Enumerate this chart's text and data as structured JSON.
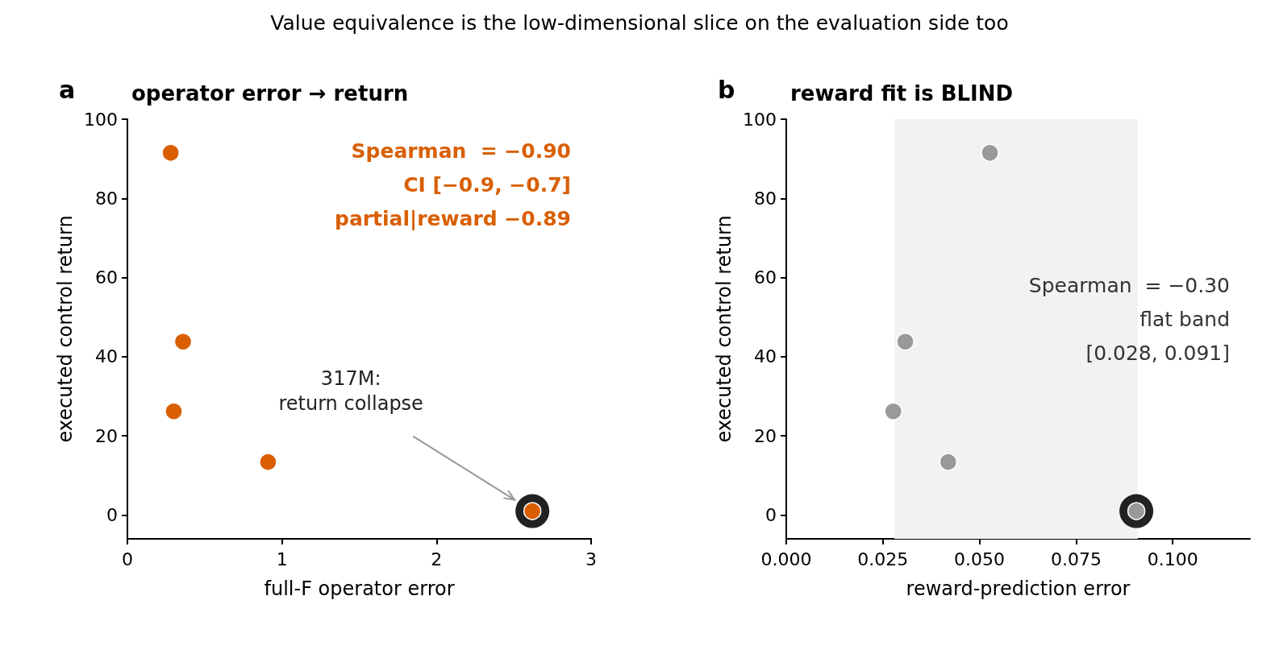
{
  "chart_data": [
    {
      "type": "scatter",
      "subtitle": "Value equivalence is the low-dimensional slice on the evaluation side too",
      "title": "operator error → return",
      "xlabel": "full-F operator error",
      "ylabel": "executed control return",
      "x": [
        0.28,
        0.36,
        0.3,
        0.91,
        2.62
      ],
      "series": [
        {
          "color": "#222222",
          "values": [
            null,
            null,
            null,
            null,
            1.0
          ]
        },
        {
          "color": "#d95f02",
          "values": [
            91.5,
            43.8,
            26.2,
            13.4,
            1.0
          ]
        }
      ],
      "xlim": [
        0,
        3
      ],
      "xticks": [
        0,
        1,
        2,
        3
      ],
      "ylim": [
        -6,
        100
      ],
      "yticks": [
        0,
        20,
        40,
        60,
        80,
        100
      ],
      "grid": false,
      "marker": "circle",
      "annotations": [
        "a",
        "Spearman  = −0.90",
        "CI [−0.9, −0.7]",
        "partial|reward −0.89",
        "317M:\nreturn collapse"
      ]
    },
    {
      "type": "scatter",
      "title": "reward fit is BLIND",
      "xlabel": "reward-prediction error",
      "ylabel": "executed control return",
      "x": [
        0.0527,
        0.0308,
        0.0277,
        0.0419,
        0.0906
      ],
      "series": [
        {
          "color": "#222222",
          "values": [
            null,
            null,
            null,
            null,
            1.0
          ]
        },
        {
          "color": "#999999",
          "values": [
            91.5,
            43.8,
            26.2,
            13.4,
            1.0
          ]
        }
      ],
      "xlim": [
        0,
        0.12
      ],
      "xticks": [
        {
          "value": 0,
          "label": "0.000"
        },
        {
          "value": 0.025,
          "label": "0.025"
        },
        {
          "value": 0.05,
          "label": "0.050"
        },
        {
          "value": 0.075,
          "label": "0.075"
        },
        {
          "value": 0.1,
          "label": "0.100"
        }
      ],
      "ylim": [
        -6,
        100
      ],
      "yticks": [
        0,
        20,
        40,
        60,
        80,
        100
      ],
      "grid": false,
      "marker": "circle",
      "bands": [
        {
          "axis": "x",
          "from": 0.028,
          "to": 0.091,
          "color": "#f2f2f2"
        }
      ],
      "annotations": [
        "b",
        "Spearman  = −0.30",
        "flat band",
        "[0.028, 0.091]"
      ]
    }
  ]
}
